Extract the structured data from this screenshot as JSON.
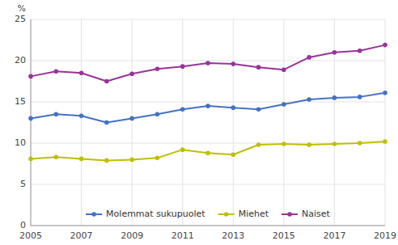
{
  "chart_data": {
    "type": "line",
    "x": [
      2005,
      2006,
      2007,
      2008,
      2009,
      2010,
      2011,
      2012,
      2013,
      2014,
      2015,
      2016,
      2017,
      2018,
      2019
    ],
    "series": [
      {
        "name": "Molemmat sukupuolet",
        "color": "#4472c4",
        "values": [
          13.0,
          13.5,
          13.3,
          12.5,
          13.0,
          13.5,
          14.1,
          14.5,
          14.3,
          14.1,
          14.7,
          15.3,
          15.5,
          15.6,
          16.1
        ]
      },
      {
        "name": "Miehet",
        "color": "#bfbf00",
        "values": [
          8.1,
          8.3,
          8.1,
          7.9,
          8.0,
          8.2,
          9.2,
          8.8,
          8.6,
          9.8,
          9.9,
          9.8,
          9.9,
          10.0,
          10.2
        ]
      },
      {
        "name": "Naiset",
        "color": "#993399",
        "values": [
          18.1,
          18.7,
          18.5,
          17.5,
          18.4,
          19.0,
          19.3,
          19.7,
          19.6,
          19.2,
          18.9,
          20.4,
          21.0,
          21.2,
          21.9
        ]
      }
    ],
    "y_label": "%",
    "xlim": [
      2005,
      2019
    ],
    "xticks": [
      2005,
      2007,
      2009,
      2011,
      2013,
      2015,
      2017,
      2019
    ],
    "ylim": [
      0,
      25
    ],
    "yticks": [
      0,
      5,
      10,
      15,
      20,
      25
    ],
    "grid": true,
    "legend": "bottom",
    "marker": "circle"
  }
}
